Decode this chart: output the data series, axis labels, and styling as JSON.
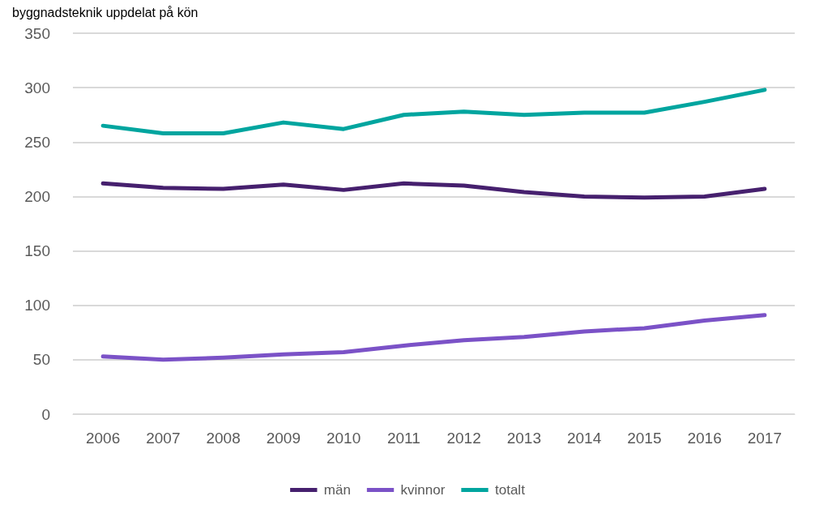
{
  "chart_data": {
    "type": "line",
    "title": "byggnadsteknik uppdelat på kön",
    "categories": [
      "2006",
      "2007",
      "2008",
      "2009",
      "2010",
      "2011",
      "2012",
      "2013",
      "2014",
      "2015",
      "2016",
      "2017"
    ],
    "series": [
      {
        "name": "män",
        "color": "#46206e",
        "values": [
          212,
          208,
          207,
          211,
          206,
          212,
          210,
          204,
          200,
          199,
          200,
          207
        ]
      },
      {
        "name": "kvinnor",
        "color": "#7b52c7",
        "values": [
          53,
          50,
          52,
          55,
          57,
          63,
          68,
          71,
          76,
          79,
          86,
          91
        ]
      },
      {
        "name": "totalt",
        "color": "#00a59f",
        "values": [
          265,
          258,
          258,
          268,
          262,
          275,
          278,
          275,
          277,
          277,
          287,
          298
        ]
      }
    ],
    "ylim": [
      0,
      350
    ],
    "yticks": [
      0,
      50,
      100,
      150,
      200,
      250,
      300,
      350
    ],
    "grid": "y",
    "legend": "bottom",
    "marker": "none",
    "line_style": "solid"
  }
}
